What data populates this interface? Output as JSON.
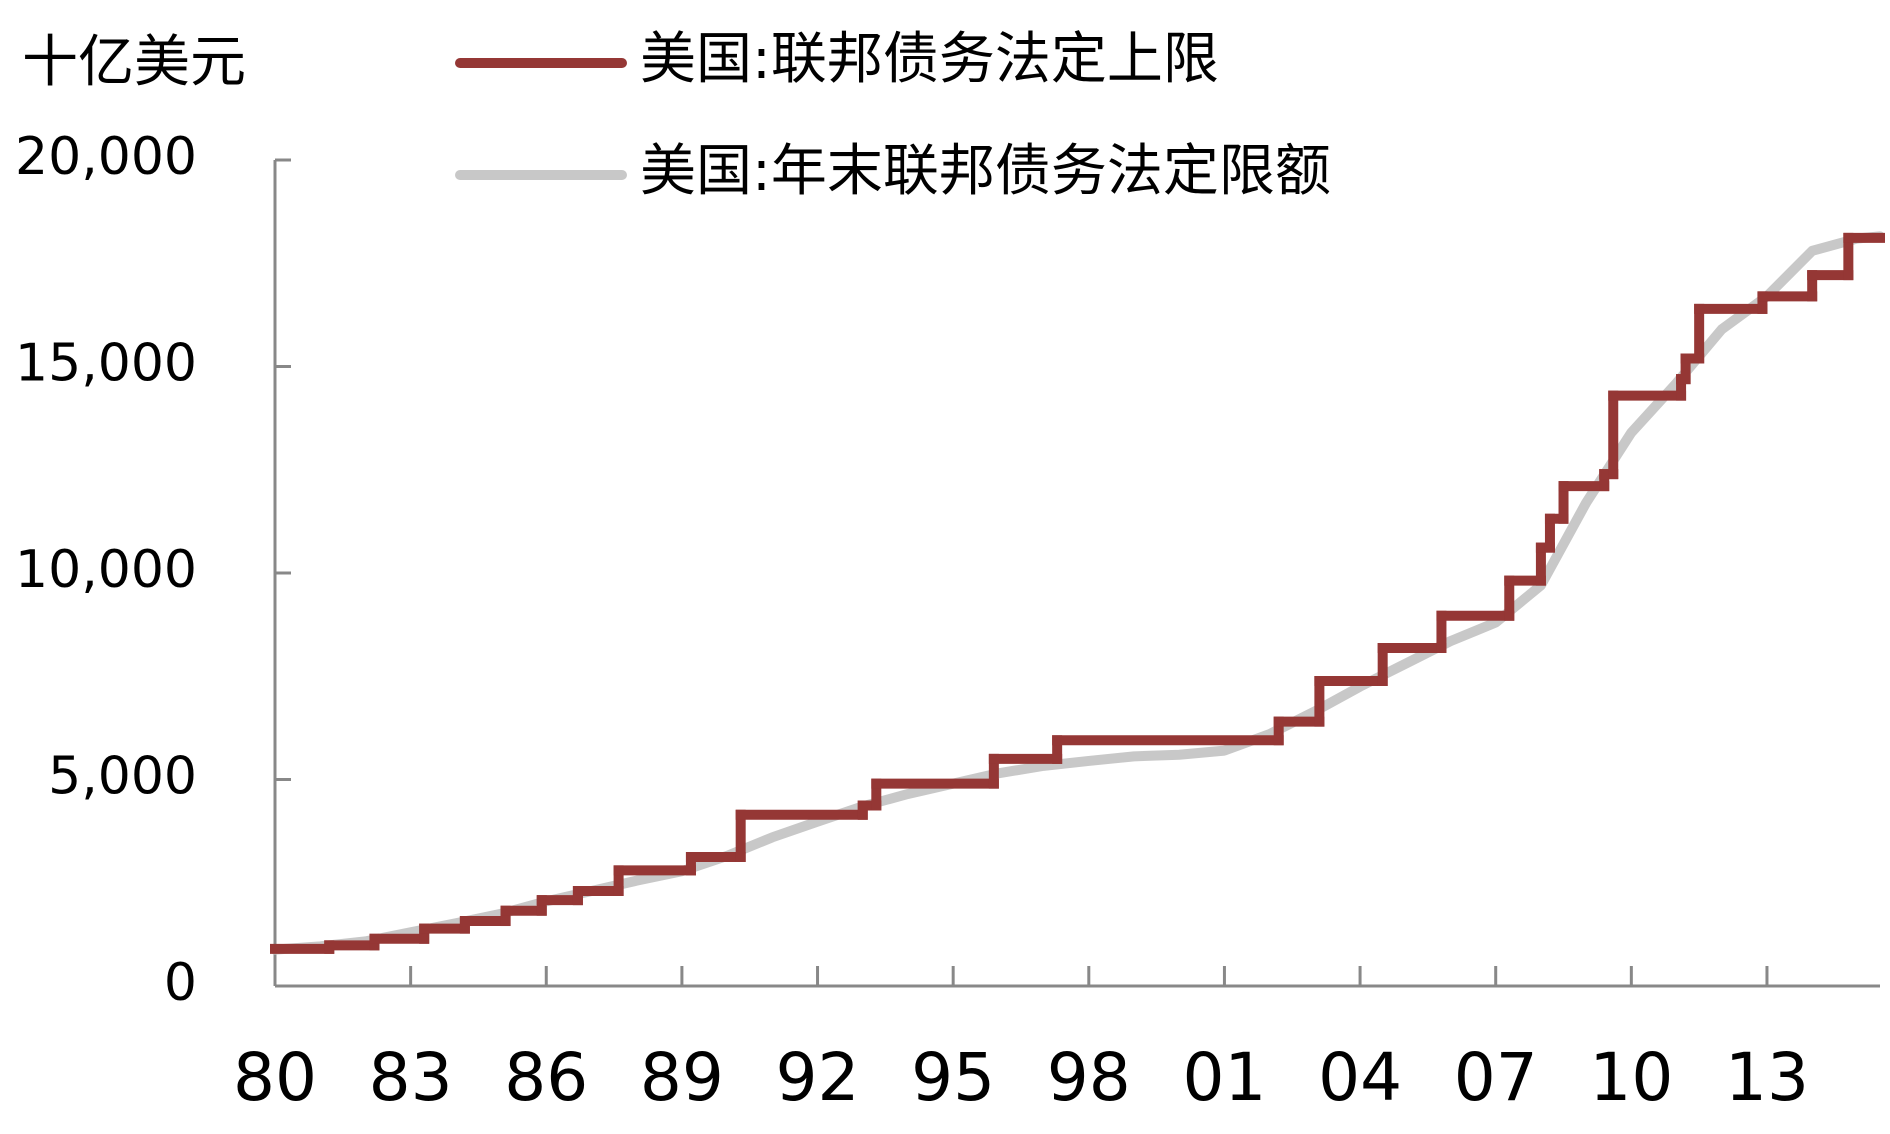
{
  "chart_data": {
    "type": "line",
    "unit_label": "十亿美元",
    "xlim": [
      1980,
      2015.5
    ],
    "xticks": [
      {
        "value": 1980,
        "label": "80"
      },
      {
        "value": 1983,
        "label": "83"
      },
      {
        "value": 1986,
        "label": "86"
      },
      {
        "value": 1989,
        "label": "89"
      },
      {
        "value": 1992,
        "label": "92"
      },
      {
        "value": 1995,
        "label": "95"
      },
      {
        "value": 1998,
        "label": "98"
      },
      {
        "value": 2001,
        "label": "01"
      },
      {
        "value": 2004,
        "label": "04"
      },
      {
        "value": 2007,
        "label": "07"
      },
      {
        "value": 2010,
        "label": "10"
      },
      {
        "value": 2013,
        "label": "13"
      }
    ],
    "ylim": [
      0,
      20000
    ],
    "yticks": [
      0,
      {
        "value": 5000,
        "label": "5,000"
      },
      {
        "value": 10000,
        "label": "10,000"
      },
      {
        "value": 15000,
        "label": "15,000"
      },
      {
        "value": 20000,
        "label": "20,000"
      }
    ],
    "series": [
      {
        "name": "美国:联邦债务法定上限",
        "color": "#953735",
        "step": "post",
        "x": [
          1980,
          1981.2,
          1982.2,
          1983.3,
          1984.2,
          1985.1,
          1985.9,
          1986.7,
          1987.6,
          1989.2,
          1990.3,
          1993.0,
          1993.3,
          1995.9,
          1997.3,
          2002.2,
          2003.1,
          2004.5,
          2005.8,
          2007.3,
          2008.0,
          2008.2,
          2008.5,
          2009.4,
          2009.6,
          2011.1,
          2011.2,
          2011.5,
          2012.9,
          2014.0,
          2014.8
        ],
        "values": [
          900,
          985,
          1143,
          1389,
          1573,
          1823,
          2079,
          2300,
          2800,
          3123,
          4145,
          4370,
          4900,
          5500,
          5950,
          6400,
          7384,
          8184,
          8965,
          9815,
          10615,
          11315,
          12104,
          12394,
          14294,
          14694,
          15194,
          16394,
          16699,
          17212,
          18113
        ]
      },
      {
        "name": "美国:年末联邦债务法定限额",
        "color": "#c8c8c8",
        "x": [
          1980,
          1981,
          1982,
          1983,
          1984,
          1985,
          1986,
          1987,
          1988,
          1989,
          1990,
          1991,
          1992,
          1993,
          1994,
          1995,
          1996,
          1997,
          1998,
          1999,
          2000,
          2001,
          2002,
          2003,
          2004,
          2005,
          2006,
          2007,
          2008,
          2009,
          2010,
          2011,
          2012,
          2013,
          2014,
          2015,
          2015.5
        ],
        "values": [
          880,
          960,
          1080,
          1300,
          1520,
          1750,
          2050,
          2300,
          2550,
          2780,
          3150,
          3600,
          3980,
          4350,
          4650,
          4900,
          5150,
          5330,
          5450,
          5560,
          5600,
          5700,
          6100,
          6650,
          7250,
          7800,
          8350,
          8800,
          9700,
          11700,
          13400,
          14600,
          15900,
          16700,
          17800,
          18100,
          18150
        ]
      }
    ]
  }
}
